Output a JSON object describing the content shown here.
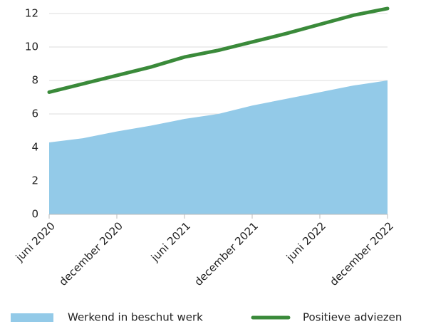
{
  "chart_data": {
    "type": "area_line",
    "categories": [
      "juni 2020",
      null,
      "december 2020",
      null,
      "juni 2021",
      null,
      "december 2021",
      null,
      "juni 2022",
      null,
      "december 2022"
    ],
    "series": [
      {
        "name": "Werkend in beschut werk",
        "color": "#93cae8",
        "kind": "area",
        "values": [
          4.3,
          4.55,
          4.95,
          5.3,
          5.7,
          6.0,
          6.5,
          6.9,
          7.3,
          7.7,
          8.0
        ]
      },
      {
        "name": "Positieve adviezen",
        "color": "#3a8a3a",
        "kind": "line",
        "values": [
          7.3,
          7.8,
          8.3,
          8.8,
          9.4,
          9.8,
          10.3,
          10.8,
          11.35,
          11.9,
          12.3
        ]
      }
    ],
    "ylim": [
      0,
      12
    ],
    "yticks": [
      0,
      2,
      4,
      6,
      8,
      10,
      12
    ],
    "grid": true,
    "legend": "bottom"
  }
}
